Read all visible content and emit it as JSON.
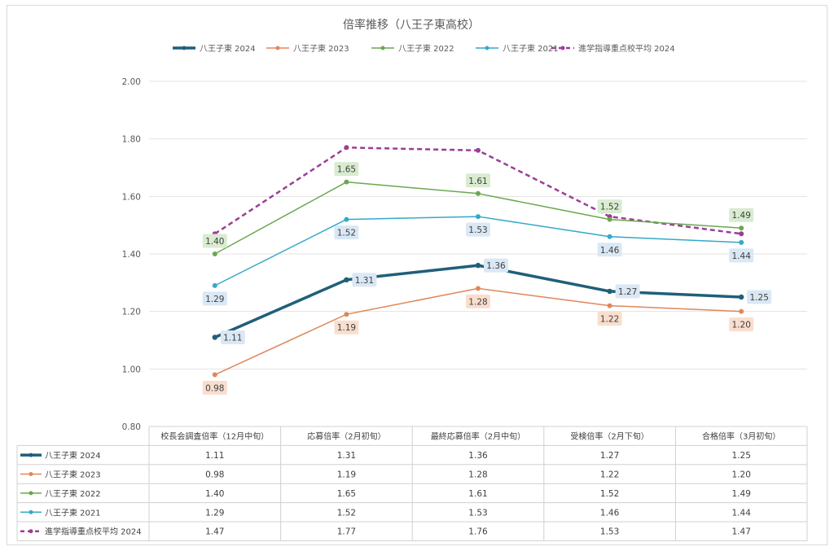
{
  "chart_data": {
    "type": "line",
    "title": "倍率推移（八王子東高校）",
    "categories": [
      "校長会調査倍率（12月中旬）",
      "応募倍率（2月初旬）",
      "最終応募倍率（2月中旬）",
      "受検倍率（2月下旬）",
      "合格倍率（3月初旬）"
    ],
    "ylim": [
      0.8,
      2.0
    ],
    "yticks": [
      "0.80",
      "1.00",
      "1.20",
      "1.40",
      "1.60",
      "1.80",
      "2.00"
    ],
    "grid": true,
    "legend": "top",
    "series": [
      {
        "name": "八王子東 2024",
        "values": [
          1.11,
          1.31,
          1.36,
          1.27,
          1.25
        ],
        "labels": [
          "1.11",
          "1.31",
          "1.36",
          "1.27",
          "1.25"
        ],
        "color": "#1f5f7a",
        "label_bg": "#dae8f5",
        "dashed": false,
        "width": 3.5,
        "label_pos": "right"
      },
      {
        "name": "八王子東 2023",
        "values": [
          0.98,
          1.19,
          1.28,
          1.22,
          1.2
        ],
        "labels": [
          "0.98",
          "1.19",
          "1.28",
          "1.22",
          "1.20"
        ],
        "color": "#e0875a",
        "label_bg": "#f9dece",
        "dashed": false,
        "width": 1.5,
        "label_pos": "below"
      },
      {
        "name": "八王子東 2022",
        "values": [
          1.4,
          1.65,
          1.61,
          1.52,
          1.49
        ],
        "labels": [
          "1.40",
          "1.65",
          "1.61",
          "1.52",
          "1.49"
        ],
        "color": "#6aa84f",
        "label_bg": "#d9ecd0",
        "dashed": false,
        "width": 1.5,
        "label_pos": "above"
      },
      {
        "name": "八王子東 2021",
        "values": [
          1.29,
          1.52,
          1.53,
          1.46,
          1.44
        ],
        "labels": [
          "1.29",
          "1.52",
          "1.53",
          "1.46",
          "1.44"
        ],
        "color": "#33a9c9",
        "label_bg": "#dae8f5",
        "dashed": false,
        "width": 1.5,
        "label_pos": "below"
      },
      {
        "name": "進学指導重点校平均 2024",
        "values": [
          1.47,
          1.77,
          1.76,
          1.53,
          1.47
        ],
        "labels": [
          "1.47",
          "1.77",
          "1.76",
          "1.53",
          "1.47"
        ],
        "color": "#9b3e96",
        "label_bg": "",
        "dashed": true,
        "width": 2.5,
        "label_pos": "none"
      }
    ]
  }
}
